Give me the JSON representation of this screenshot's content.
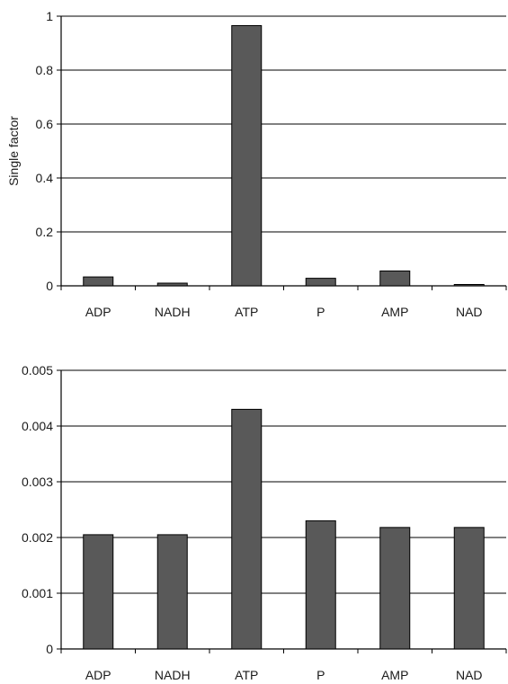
{
  "chart_data": [
    {
      "type": "bar",
      "title": "",
      "xlabel": "",
      "ylabel": "Single factor",
      "categories": [
        "ADP",
        "NADH",
        "ATP",
        "P",
        "AMP",
        "NAD"
      ],
      "values": [
        0.033,
        0.01,
        0.965,
        0.028,
        0.055,
        0.005
      ],
      "ylim": [
        0,
        1
      ],
      "yticks": [
        "0",
        "0.2",
        "0.4",
        "0.6",
        "0.8",
        "1"
      ],
      "grid": true,
      "bar_color": "#595959"
    },
    {
      "type": "bar",
      "title": "",
      "xlabel": "",
      "ylabel": "",
      "categories": [
        "ADP",
        "NADH",
        "ATP",
        "P",
        "AMP",
        "NAD"
      ],
      "values": [
        0.00205,
        0.00205,
        0.0043,
        0.0023,
        0.00218,
        0.00218
      ],
      "ylim": [
        0,
        0.005
      ],
      "yticks": [
        "0",
        "0.001",
        "0.002",
        "0.003",
        "0.004",
        "0.005"
      ],
      "grid": true,
      "bar_color": "#595959"
    }
  ]
}
